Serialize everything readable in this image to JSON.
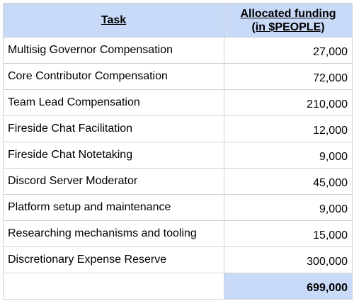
{
  "table": {
    "header": {
      "task": "Task",
      "funding_line1": "Allocated funding",
      "funding_line2": "(in $PEOPLE)"
    },
    "rows": [
      {
        "task": "Multisig Governor Compensation",
        "funding": "27,000"
      },
      {
        "task": "Core Contributor Compensation",
        "funding": "72,000"
      },
      {
        "task": "Team Lead Compensation",
        "funding": "210,000"
      },
      {
        "task": "Fireside Chat Facilitation",
        "funding": "12,000"
      },
      {
        "task": "Fireside Chat Notetaking",
        "funding": "9,000"
      },
      {
        "task": "Discord Server Moderator",
        "funding": "45,000"
      },
      {
        "task": "Platform setup and maintenance",
        "funding": "9,000"
      },
      {
        "task": "Researching mechanisms and tooling",
        "funding": "15,000"
      },
      {
        "task": "Discretionary Expense Reserve",
        "funding": "300,000"
      }
    ],
    "total": {
      "label": "",
      "value": "699,000"
    }
  },
  "colors": {
    "header_fill": "#c9daf8",
    "total_fill": "#c9daf8",
    "grid_line": "#d0d0d0"
  }
}
